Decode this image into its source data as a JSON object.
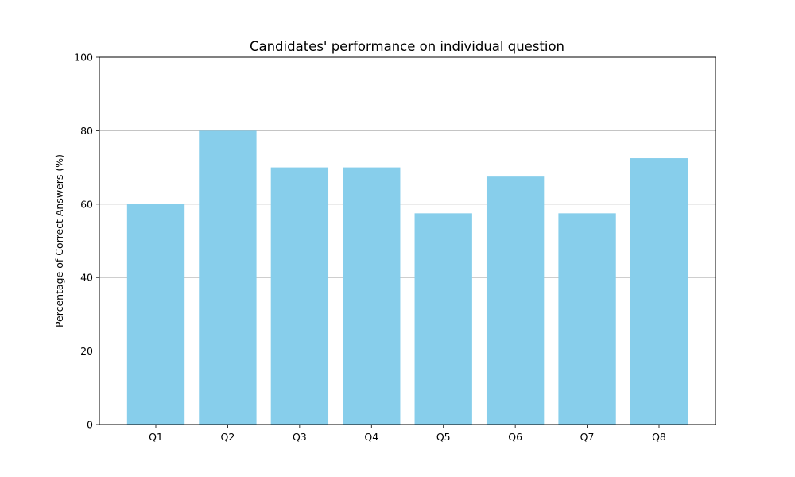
{
  "chart_data": {
    "type": "bar",
    "title": "Candidates' performance on individual question",
    "xlabel": "",
    "ylabel": "Percentage of Correct Answers (%)",
    "categories": [
      "Q1",
      "Q2",
      "Q3",
      "Q4",
      "Q5",
      "Q6",
      "Q7",
      "Q8"
    ],
    "values": [
      60,
      80,
      70,
      70,
      57.5,
      67.5,
      57.5,
      72.5
    ],
    "ylim": [
      0,
      100
    ],
    "yticks": [
      0,
      20,
      40,
      60,
      80,
      100
    ],
    "grid": "y-axis",
    "legend": "none",
    "colors": {
      "bar": "#87ceeb",
      "grid": "#b0b0b0",
      "axis": "#000000"
    }
  }
}
